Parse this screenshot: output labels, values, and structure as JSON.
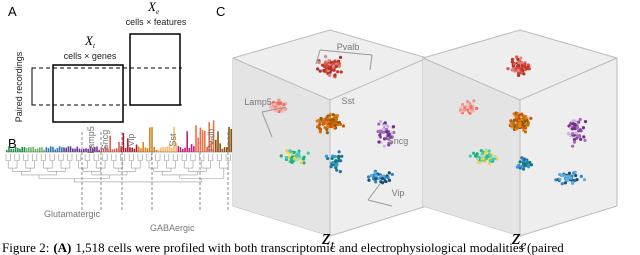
{
  "panel_a": {
    "label": "A",
    "xt_symbol": "X",
    "xt_subscript": "t",
    "xt_description": "cells × genes",
    "xe_symbol": "X",
    "xe_subscript": "e",
    "xe_description": "cells × features",
    "paired_label": "Paired recordings"
  },
  "panel_b": {
    "label": "B",
    "types": [
      "Lamp5",
      "Sncg",
      "Vip",
      "Sst",
      "Pvalb"
    ],
    "classes": [
      "Glutamatergic",
      "GABAergic"
    ]
  },
  "panel_c": {
    "label": "C",
    "cluster_labels": [
      "Pvalb",
      "Lamp5",
      "Sst",
      "Sncg",
      "Vip"
    ],
    "embeddings": [
      {
        "symbol": "z",
        "subscript": "t"
      },
      {
        "symbol": "z",
        "subscript": "e"
      }
    ]
  },
  "caption": {
    "label": "Figure 2:",
    "panel": "(A)",
    "text": "1,518 cells were profiled with both transcriptomic and electrophysiological modalities (paired"
  }
}
